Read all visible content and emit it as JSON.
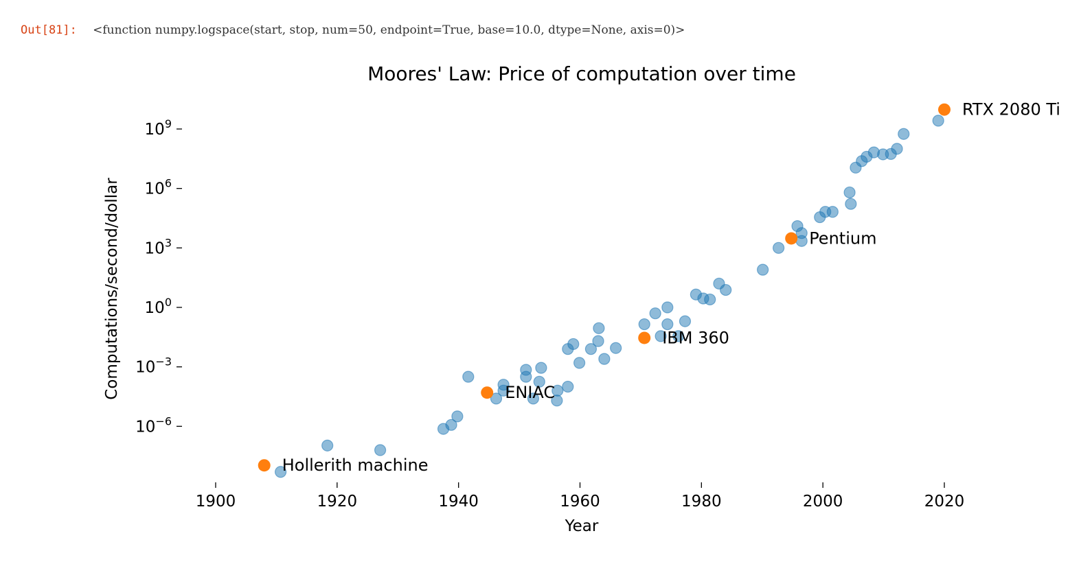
{
  "output_cell": {
    "prompt": "Out[81]:",
    "text": "<function numpy.logspace(start, stop, num=50, endpoint=True, base=10.0, dtype=None, axis=0)>"
  },
  "colors": {
    "scatter": "#1f77b4",
    "highlight": "#ff7f0e",
    "prompt": "#d84315"
  },
  "chart_data": {
    "type": "scatter",
    "title": "Moores' Law: Price of computation over time",
    "xlabel": "Year",
    "ylabel": "Computations/second/dollar",
    "x_scale": "linear",
    "y_scale": "log",
    "xlim": [
      1891,
      2020
    ],
    "ylim_log10": [
      -9.2,
      10.7
    ],
    "x_ticks": [
      1900,
      1920,
      1940,
      1960,
      1980,
      2000,
      2020
    ],
    "y_ticks": [
      {
        "base": "10",
        "exp": "−6",
        "log10": -6
      },
      {
        "base": "10",
        "exp": "−3",
        "log10": -3
      },
      {
        "base": "10",
        "exp": "0",
        "log10": 0
      },
      {
        "base": "10",
        "exp": "3",
        "log10": 3
      },
      {
        "base": "10",
        "exp": "6",
        "log10": 6
      },
      {
        "base": "10",
        "exp": "9",
        "log10": 9
      }
    ],
    "grid": false,
    "legend": "none",
    "series": [
      {
        "points_log10": [
          [
            1910.7,
            -8.3
          ],
          [
            1918.4,
            -6.97
          ],
          [
            1927.1,
            -7.2
          ],
          [
            1937.5,
            -6.13
          ],
          [
            1938.8,
            -5.93
          ],
          [
            1939.8,
            -5.5
          ],
          [
            1941.6,
            -3.5
          ],
          [
            1946.2,
            -4.6
          ],
          [
            1947.4,
            -3.9
          ],
          [
            1947.4,
            -4.2
          ],
          [
            1951.1,
            -3.15
          ],
          [
            1951.1,
            -3.5
          ],
          [
            1952.3,
            -4.6
          ],
          [
            1953.3,
            -3.75
          ],
          [
            1953.6,
            -3.05
          ],
          [
            1956.2,
            -4.7
          ],
          [
            1956.3,
            -4.2
          ],
          [
            1958.0,
            -4.0
          ],
          [
            1958.0,
            -2.1
          ],
          [
            1958.9,
            -1.85
          ],
          [
            1959.9,
            -2.8
          ],
          [
            1961.8,
            -2.1
          ],
          [
            1963.0,
            -1.7
          ],
          [
            1963.1,
            -1.05
          ],
          [
            1964.0,
            -2.6
          ],
          [
            1965.9,
            -2.05
          ],
          [
            1970.6,
            -0.85
          ],
          [
            1972.4,
            -0.3
          ],
          [
            1973.3,
            -1.45
          ],
          [
            1974.4,
            -0.85
          ],
          [
            1974.4,
            0.0
          ],
          [
            1976.2,
            -1.45
          ],
          [
            1977.3,
            -0.7
          ],
          [
            1979.1,
            0.65
          ],
          [
            1980.3,
            0.45
          ],
          [
            1981.4,
            0.4
          ],
          [
            1982.9,
            1.2
          ],
          [
            1984.0,
            0.88
          ],
          [
            1990.1,
            1.9
          ],
          [
            1992.7,
            3.0
          ],
          [
            1995.8,
            4.1
          ],
          [
            1996.5,
            3.75
          ],
          [
            1996.5,
            3.35
          ],
          [
            1999.5,
            4.55
          ],
          [
            2000.4,
            4.82
          ],
          [
            2001.6,
            4.82
          ],
          [
            2004.4,
            5.8
          ],
          [
            2004.6,
            5.22
          ],
          [
            2005.4,
            7.05
          ],
          [
            2006.4,
            7.38
          ],
          [
            2007.2,
            7.6
          ],
          [
            2008.4,
            7.82
          ],
          [
            2009.9,
            7.72
          ],
          [
            2011.2,
            7.74
          ],
          [
            2012.2,
            8.0
          ],
          [
            2013.3,
            8.75
          ],
          [
            2019.0,
            9.42
          ]
        ]
      },
      {
        "points_log10": [
          [
            1908.0,
            -7.97
          ],
          [
            1944.7,
            -4.3
          ],
          [
            1970.6,
            -1.54
          ],
          [
            1994.8,
            3.48
          ],
          [
            2020.0,
            9.98
          ]
        ],
        "labels": [
          "Hollerith machine",
          "ENIAC",
          "IBM 360",
          "Pentium",
          "RTX 2080 Ti"
        ]
      }
    ]
  }
}
